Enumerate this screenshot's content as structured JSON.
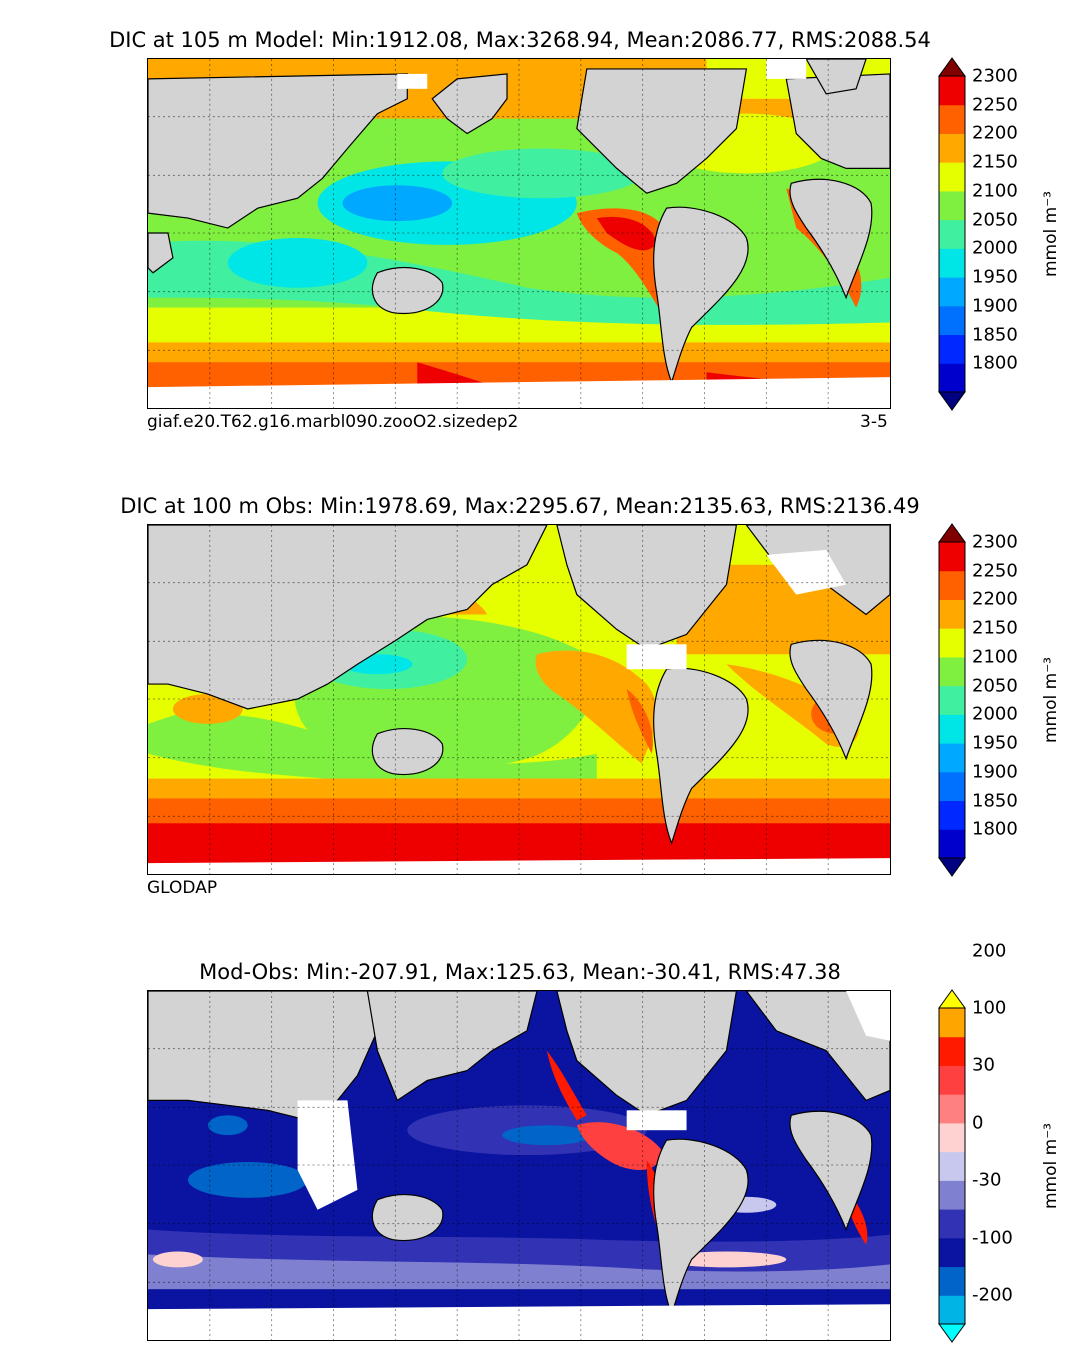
{
  "panels": [
    {
      "id": "model",
      "title": "DIC at 105 m Model: Min:1912.08, Max:3268.94, Mean:2086.77, RMS:2088.54",
      "caption_left": "giaf.e20.T62.g16.marbl090.zooO2.sizedep2",
      "caption_right": "3-5",
      "colorbar": {
        "unit": "mmol m⁻³",
        "colors": [
          "#000080",
          "#0000cd",
          "#0028ff",
          "#0070ff",
          "#00a8ff",
          "#00e6e6",
          "#40f0a0",
          "#80f040",
          "#e6ff00",
          "#ffa800",
          "#ff6000",
          "#ee0000",
          "#800000"
        ],
        "tick_labels": [
          "1800",
          "1850",
          "1900",
          "1950",
          "2000",
          "2050",
          "2100",
          "2150",
          "2200",
          "2250",
          "2300"
        ]
      }
    },
    {
      "id": "obs",
      "title": "DIC at 100 m Obs: Min:1978.69, Max:2295.67, Mean:2135.63, RMS:2136.49",
      "caption_left": "GLODAP",
      "caption_right": "",
      "colorbar": {
        "unit": "mmol m⁻³",
        "colors": [
          "#000080",
          "#0000cd",
          "#0028ff",
          "#0070ff",
          "#00a8ff",
          "#00e6e6",
          "#40f0a0",
          "#80f040",
          "#e6ff00",
          "#ffa800",
          "#ff6000",
          "#ee0000",
          "#800000"
        ],
        "tick_labels": [
          "1800",
          "1850",
          "1900",
          "1950",
          "2000",
          "2050",
          "2100",
          "2150",
          "2200",
          "2250",
          "2300"
        ]
      }
    },
    {
      "id": "diff",
      "title": "Mod-Obs: Min:-207.91, Max:125.63, Mean:-30.41, RMS:47.38",
      "caption_left": "",
      "caption_right": "",
      "colorbar": {
        "unit": "mmol m⁻³",
        "colors": [
          "#00ffff",
          "#00b4e6",
          "#0064c8",
          "#0a14a0",
          "#3232b4",
          "#8080d0",
          "#c8c8ee",
          "#ffd2d2",
          "#ff8080",
          "#ff4040",
          "#ff1a00",
          "#ffa500",
          "#ffff00"
        ],
        "tick_labels": [
          "-200",
          "-100",
          "-30",
          "0",
          "30",
          "100",
          "200"
        ]
      }
    }
  ],
  "colors": {
    "land": "#d3d3d3",
    "missing": "#ffffff"
  }
}
